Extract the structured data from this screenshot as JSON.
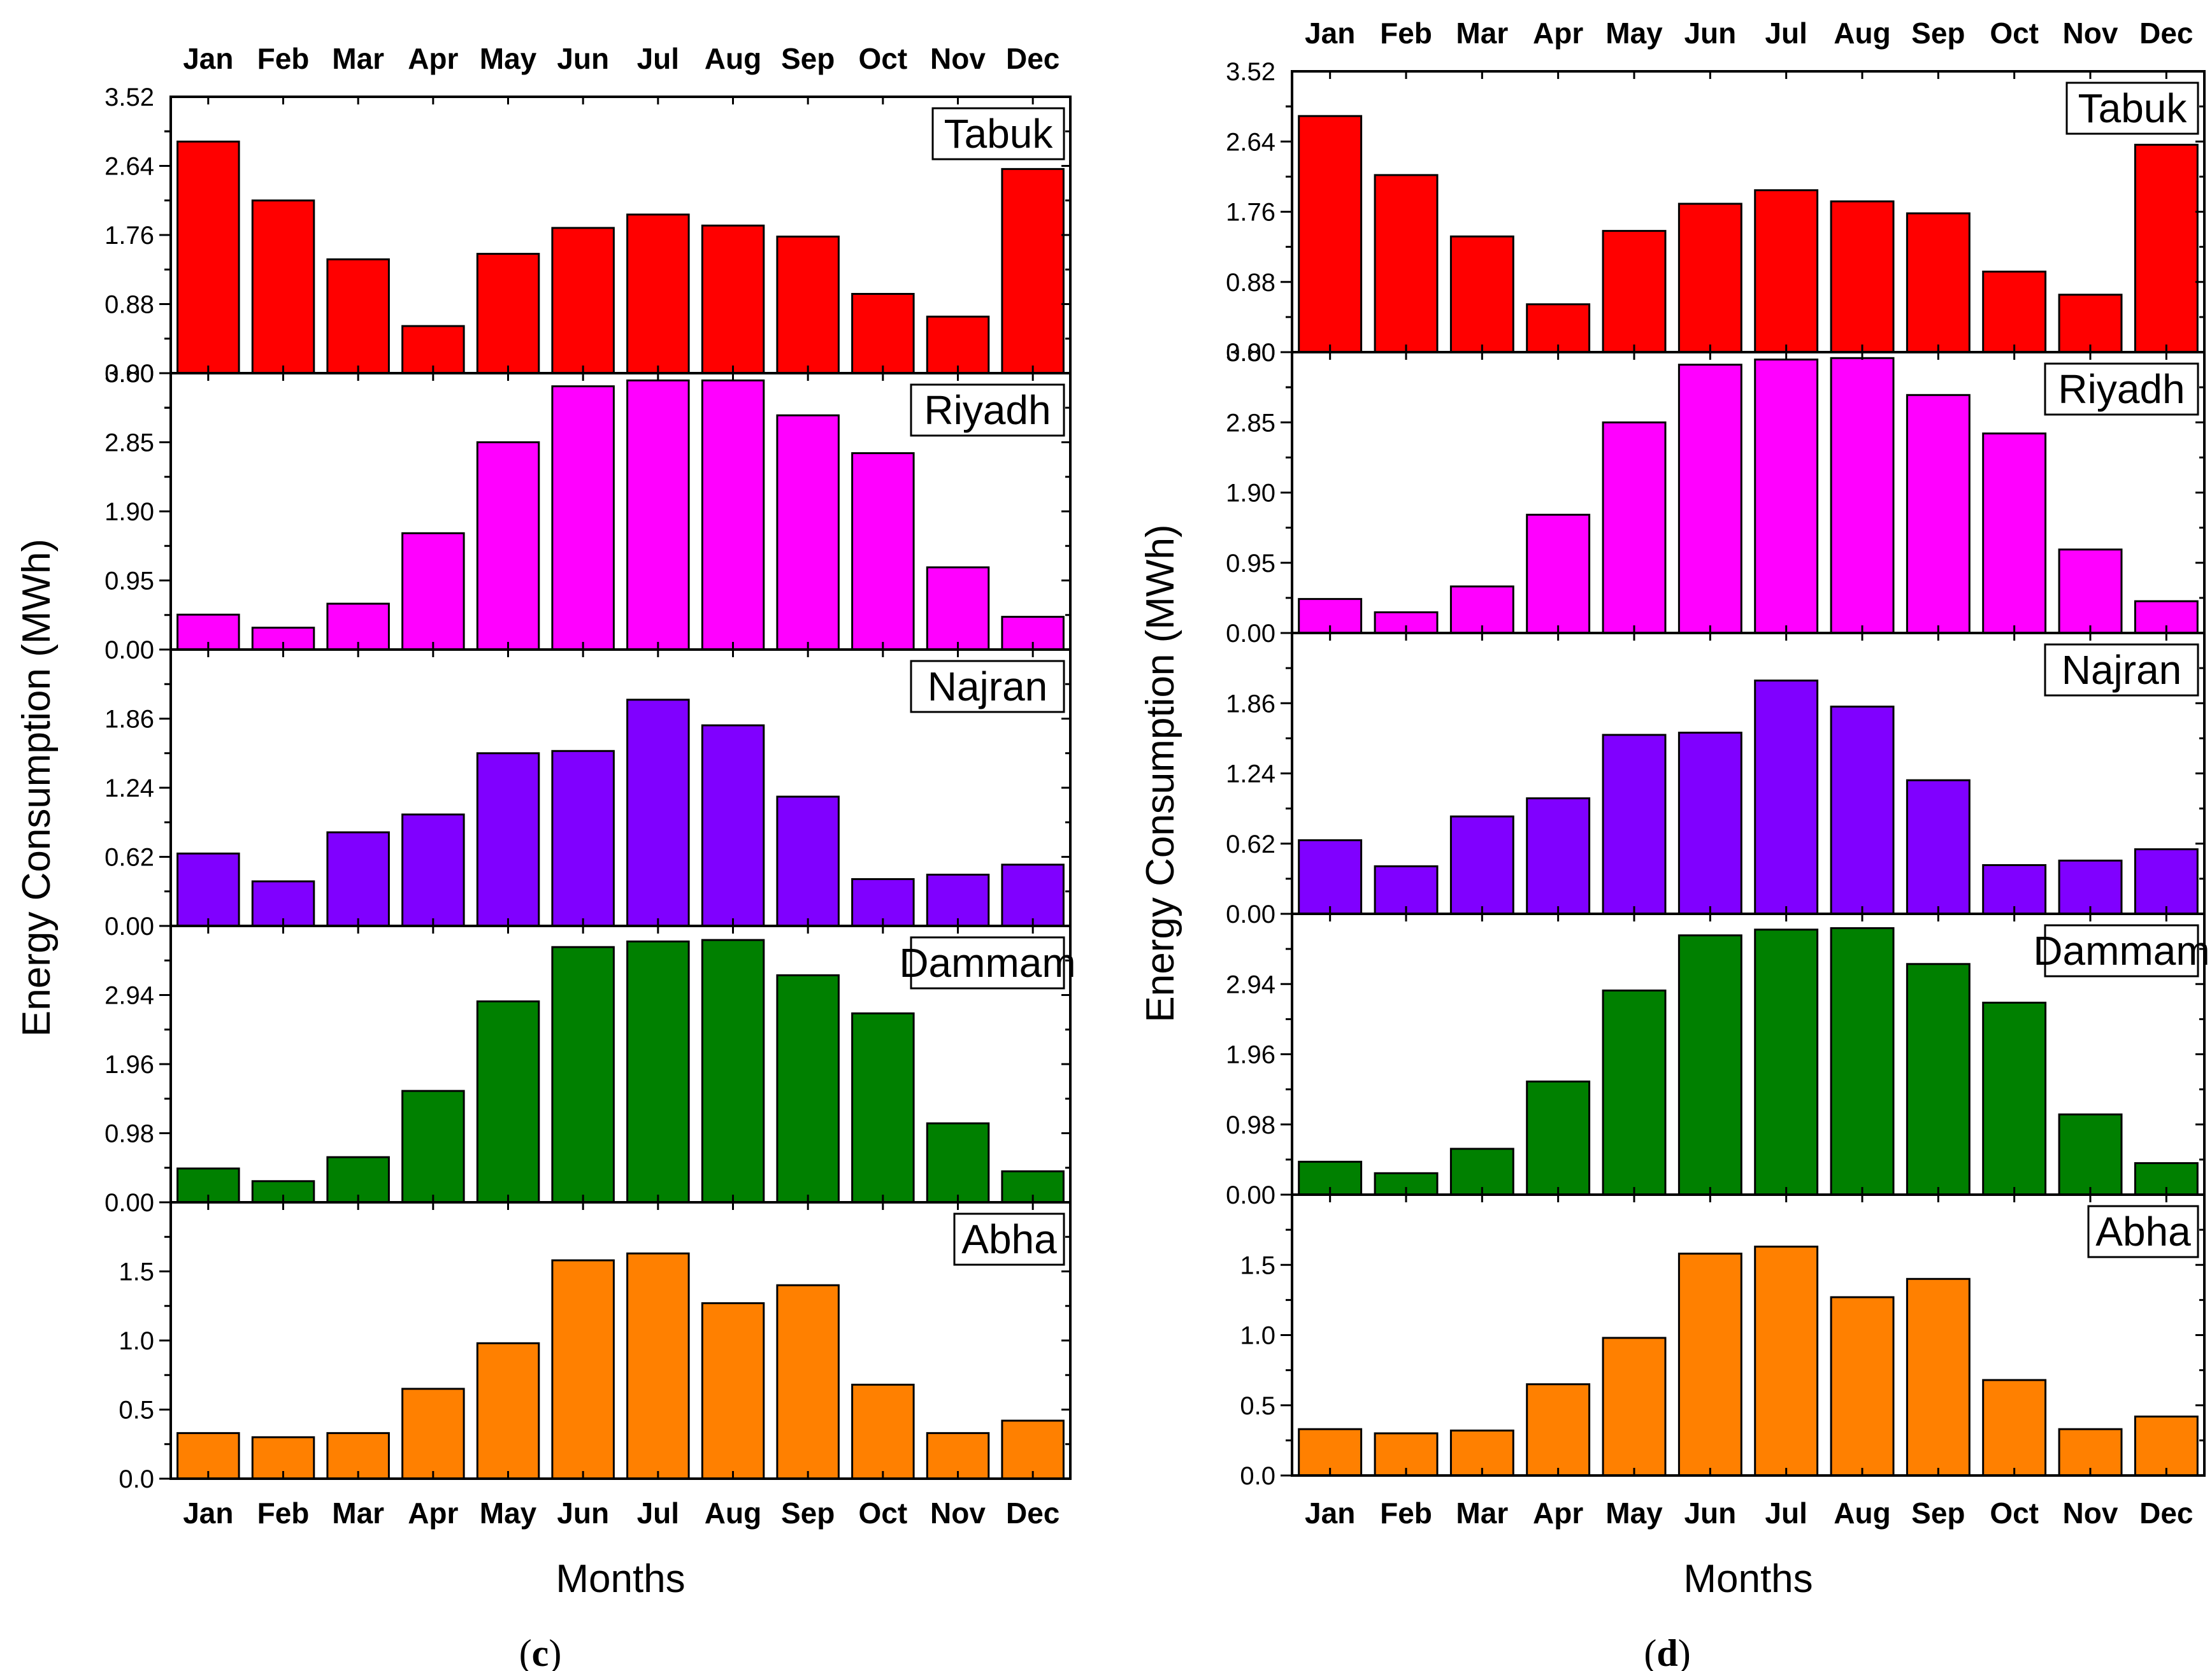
{
  "months": [
    "Jan",
    "Feb",
    "Mar",
    "Apr",
    "May",
    "Jun",
    "Jul",
    "Aug",
    "Sep",
    "Oct",
    "Nov",
    "Dec"
  ],
  "y_axis_title": "Energy Consumption (MWh)",
  "x_axis_title": "Months",
  "captions": [
    {
      "open": "(",
      "letter": "c",
      "close": ")"
    },
    {
      "open": "(",
      "letter": "d",
      "close": ")"
    }
  ],
  "chart_data": [
    {
      "type": "bar",
      "title": "(c)",
      "xlabel": "Months",
      "ylabel": "Energy Consumption (MWh)",
      "categories": [
        "Jan",
        "Feb",
        "Mar",
        "Apr",
        "May",
        "Jun",
        "Jul",
        "Aug",
        "Sep",
        "Oct",
        "Nov",
        "Dec"
      ],
      "panels": [
        {
          "city": "Tabuk",
          "color": "#ff0000",
          "ylim": [
            0,
            3.52
          ],
          "ticks": [
            "0.00",
            "0.88",
            "1.76",
            "2.64"
          ],
          "top_tick": "3.52",
          "values": [
            2.95,
            2.2,
            1.45,
            0.6,
            1.52,
            1.85,
            2.02,
            1.88,
            1.74,
            1.01,
            0.72,
            2.6
          ]
        },
        {
          "city": "Riyadh",
          "color": "#ff00ff",
          "ylim": [
            0,
            3.8
          ],
          "ticks": [
            "0.00",
            "0.95",
            "1.90",
            "2.85"
          ],
          "top_tick": "3.80",
          "values": [
            0.48,
            0.3,
            0.63,
            1.6,
            2.85,
            3.62,
            3.7,
            3.7,
            3.22,
            2.7,
            1.13,
            0.45
          ]
        },
        {
          "city": "Najran",
          "color": "#8000ff",
          "ylim": [
            0,
            2.48
          ],
          "ticks": [
            "0.00",
            "0.62",
            "1.24",
            "1.86"
          ],
          "values": [
            0.65,
            0.4,
            0.84,
            1.0,
            1.55,
            1.57,
            2.03,
            1.8,
            1.16,
            0.42,
            0.46,
            0.55
          ]
        },
        {
          "city": "Dammam",
          "color": "#008000",
          "ylim": [
            0,
            3.92
          ],
          "ticks": [
            "0.00",
            "0.98",
            "1.96",
            "2.94"
          ],
          "values": [
            0.48,
            0.3,
            0.64,
            1.58,
            2.85,
            3.62,
            3.7,
            3.72,
            3.22,
            2.68,
            1.12,
            0.44
          ]
        },
        {
          "city": "Abha",
          "color": "#ff8000",
          "ylim": [
            0,
            2.0
          ],
          "ticks": [
            "0.0",
            "0.5",
            "1.0",
            "1.5"
          ],
          "values": [
            0.33,
            0.3,
            0.33,
            0.65,
            0.98,
            1.58,
            1.63,
            1.27,
            1.4,
            0.68,
            0.33,
            0.42
          ]
        }
      ]
    },
    {
      "type": "bar",
      "title": "(d)",
      "xlabel": "Months",
      "ylabel": "Energy Consumption (MWh)",
      "categories": [
        "Jan",
        "Feb",
        "Mar",
        "Apr",
        "May",
        "Jun",
        "Jul",
        "Aug",
        "Sep",
        "Oct",
        "Nov",
        "Dec"
      ],
      "panels": [
        {
          "city": "Tabuk",
          "color": "#ff0000",
          "ylim": [
            0,
            3.52
          ],
          "ticks": [
            "0.00",
            "0.88",
            "1.76",
            "2.64"
          ],
          "top_tick": "3.52",
          "values": [
            2.96,
            2.22,
            1.45,
            0.6,
            1.52,
            1.86,
            2.03,
            1.89,
            1.74,
            1.01,
            0.72,
            2.6
          ]
        },
        {
          "city": "Riyadh",
          "color": "#ff00ff",
          "ylim": [
            0,
            3.8
          ],
          "ticks": [
            "0.00",
            "0.95",
            "1.90",
            "2.85"
          ],
          "top_tick": "3.80",
          "values": [
            0.46,
            0.28,
            0.63,
            1.6,
            2.85,
            3.63,
            3.7,
            3.72,
            3.22,
            2.7,
            1.13,
            0.43
          ]
        },
        {
          "city": "Najran",
          "color": "#8000ff",
          "ylim": [
            0,
            2.48
          ],
          "ticks": [
            "0.00",
            "0.62",
            "1.24",
            "1.86"
          ],
          "values": [
            0.65,
            0.42,
            0.86,
            1.02,
            1.58,
            1.6,
            2.06,
            1.83,
            1.18,
            0.43,
            0.47,
            0.57
          ]
        },
        {
          "city": "Dammam",
          "color": "#008000",
          "ylim": [
            0,
            3.92
          ],
          "ticks": [
            "0.00",
            "0.98",
            "1.96",
            "2.94"
          ],
          "values": [
            0.46,
            0.3,
            0.64,
            1.58,
            2.85,
            3.62,
            3.7,
            3.72,
            3.22,
            2.68,
            1.12,
            0.44
          ]
        },
        {
          "city": "Abha",
          "color": "#ff8000",
          "ylim": [
            0,
            2.0
          ],
          "ticks": [
            "0.0",
            "0.5",
            "1.0",
            "1.5"
          ],
          "values": [
            0.33,
            0.3,
            0.32,
            0.65,
            0.98,
            1.58,
            1.63,
            1.27,
            1.4,
            0.68,
            0.33,
            0.42
          ]
        }
      ]
    }
  ]
}
